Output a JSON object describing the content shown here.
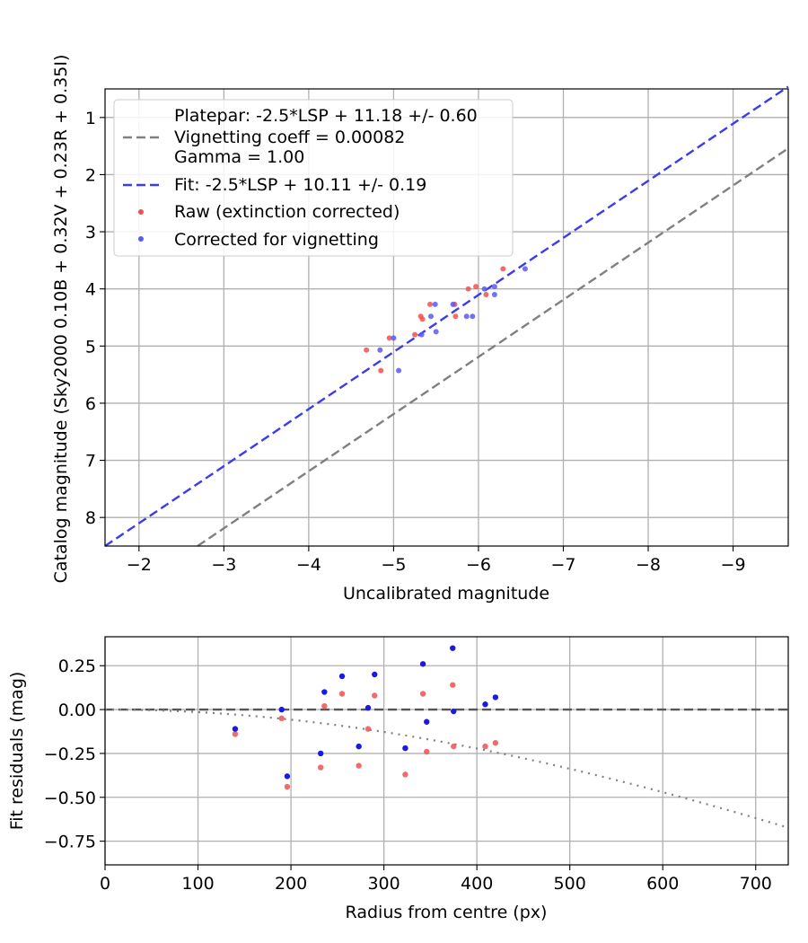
{
  "chart_data": [
    {
      "type": "scatter",
      "xlabel": "Uncalibrated magnitude",
      "ylabel": "Catalog magnitude (Sky2000 0.10B + 0.32V + 0.23R + 0.35I)",
      "xlim": [
        -1.6,
        -9.65
      ],
      "ylim": [
        8.5,
        0.5
      ],
      "x_ticks": [
        -2,
        -3,
        -4,
        -5,
        -6,
        -7,
        -8,
        -9
      ],
      "x_tick_labels": [
        "−2",
        "−3",
        "−4",
        "−5",
        "−6",
        "−7",
        "−8",
        "−9"
      ],
      "y_ticks": [
        1,
        2,
        3,
        4,
        5,
        6,
        7,
        8
      ],
      "y_tick_labels": [
        "1",
        "2",
        "3",
        "4",
        "5",
        "6",
        "7",
        "8"
      ],
      "grid": true,
      "legend_position": "top-left",
      "legend": [
        {
          "label": "Platepar: -2.5*LSP + 11.18 +/- 0.60",
          "symbol": "none"
        },
        {
          "label": "Vignetting coeff = 0.00082",
          "symbol": "dash",
          "color": "#808080"
        },
        {
          "label": "Gamma = 1.00",
          "symbol": "none"
        },
        {
          "label": "Fit: -2.5*LSP + 10.11 +/- 0.19",
          "symbol": "dash",
          "color": "#3b3bef"
        },
        {
          "label": "Raw (extinction corrected)",
          "symbol": "dot",
          "color": "#f05050"
        },
        {
          "label": "Corrected for vignetting",
          "symbol": "dot",
          "color": "#5a5af0"
        }
      ],
      "lines": [
        {
          "name": "Platepar",
          "color": "#808080",
          "style": "dashed",
          "points": [
            [
              -2.69,
              8.5
            ],
            [
              -9.65,
              1.54
            ]
          ]
        },
        {
          "name": "Fit",
          "color": "#3b3bef",
          "style": "dashed",
          "points": [
            [
              -1.6,
              8.5
            ],
            [
              -9.65,
              0.46
            ]
          ]
        }
      ],
      "series": [
        {
          "name": "Raw (extinction corrected)",
          "color": "#f05050",
          "points": [
            [
              -4.68,
              5.07
            ],
            [
              -4.85,
              5.43
            ],
            [
              -4.95,
              4.86
            ],
            [
              -5.25,
              4.8
            ],
            [
              -5.32,
              4.48
            ],
            [
              -5.34,
              4.53
            ],
            [
              -5.43,
              4.27
            ],
            [
              -5.72,
              4.27
            ],
            [
              -5.73,
              4.48
            ],
            [
              -5.88,
              4.0
            ],
            [
              -5.97,
              3.96
            ],
            [
              -6.09,
              4.1
            ],
            [
              -6.29,
              3.65
            ]
          ]
        },
        {
          "name": "Corrected for vignetting",
          "color": "#5a5af0",
          "points": [
            [
              -4.84,
              5.07
            ],
            [
              -5.0,
              4.86
            ],
            [
              -5.06,
              5.43
            ],
            [
              -5.33,
              4.8
            ],
            [
              -5.44,
              4.48
            ],
            [
              -5.49,
              4.27
            ],
            [
              -5.5,
              4.75
            ],
            [
              -5.7,
              4.27
            ],
            [
              -5.86,
              4.48
            ],
            [
              -5.93,
              4.48
            ],
            [
              -6.07,
              4.0
            ],
            [
              -6.19,
              4.1
            ],
            [
              -6.19,
              3.96
            ],
            [
              -6.55,
              3.65
            ]
          ]
        }
      ]
    },
    {
      "type": "scatter",
      "xlabel": "Radius from centre (px)",
      "ylabel": "Fit residuals (mag)",
      "xlim": [
        0,
        735
      ],
      "ylim": [
        -0.885,
        0.415
      ],
      "x_ticks": [
        0,
        100,
        200,
        300,
        400,
        500,
        600,
        700
      ],
      "x_tick_labels": [
        "0",
        "100",
        "200",
        "300",
        "400",
        "500",
        "600",
        "700"
      ],
      "y_ticks": [
        0.25,
        0.0,
        -0.25,
        -0.5,
        -0.75
      ],
      "y_tick_labels": [
        "0.25",
        "0.00",
        "−0.25",
        "−0.50",
        "−0.75"
      ],
      "grid": true,
      "lines": [
        {
          "name": "zero",
          "color": "#555555",
          "style": "dashed",
          "points": [
            [
              0,
              0
            ],
            [
              735,
              0
            ]
          ]
        },
        {
          "name": "vignetting model",
          "color": "#808080",
          "style": "dotted",
          "curve": "vignetting",
          "coeff": 0.00082
        }
      ],
      "series": [
        {
          "name": "Raw (extinction corrected)",
          "color": "#f05050",
          "points": [
            [
              140,
              -0.14
            ],
            [
              190,
              -0.05
            ],
            [
              196,
              -0.44
            ],
            [
              232,
              -0.33
            ],
            [
              236,
              0.02
            ],
            [
              255,
              0.09
            ],
            [
              273,
              -0.32
            ],
            [
              283,
              -0.11
            ],
            [
              290,
              0.08
            ],
            [
              323,
              -0.37
            ],
            [
              342,
              0.09
            ],
            [
              346,
              -0.24
            ],
            [
              374,
              0.14
            ],
            [
              375,
              -0.21
            ],
            [
              409,
              -0.21
            ],
            [
              420,
              -0.19
            ]
          ]
        },
        {
          "name": "Corrected for vignetting",
          "color": "#1a1ae8",
          "points": [
            [
              140,
              -0.11
            ],
            [
              190,
              0.0
            ],
            [
              196,
              -0.38
            ],
            [
              232,
              -0.25
            ],
            [
              236,
              0.1
            ],
            [
              255,
              0.19
            ],
            [
              273,
              -0.21
            ],
            [
              283,
              0.01
            ],
            [
              290,
              0.2
            ],
            [
              323,
              -0.22
            ],
            [
              342,
              0.26
            ],
            [
              346,
              -0.07
            ],
            [
              374,
              0.35
            ],
            [
              375,
              -0.01
            ],
            [
              409,
              0.03
            ],
            [
              420,
              0.07
            ]
          ]
        }
      ]
    }
  ]
}
